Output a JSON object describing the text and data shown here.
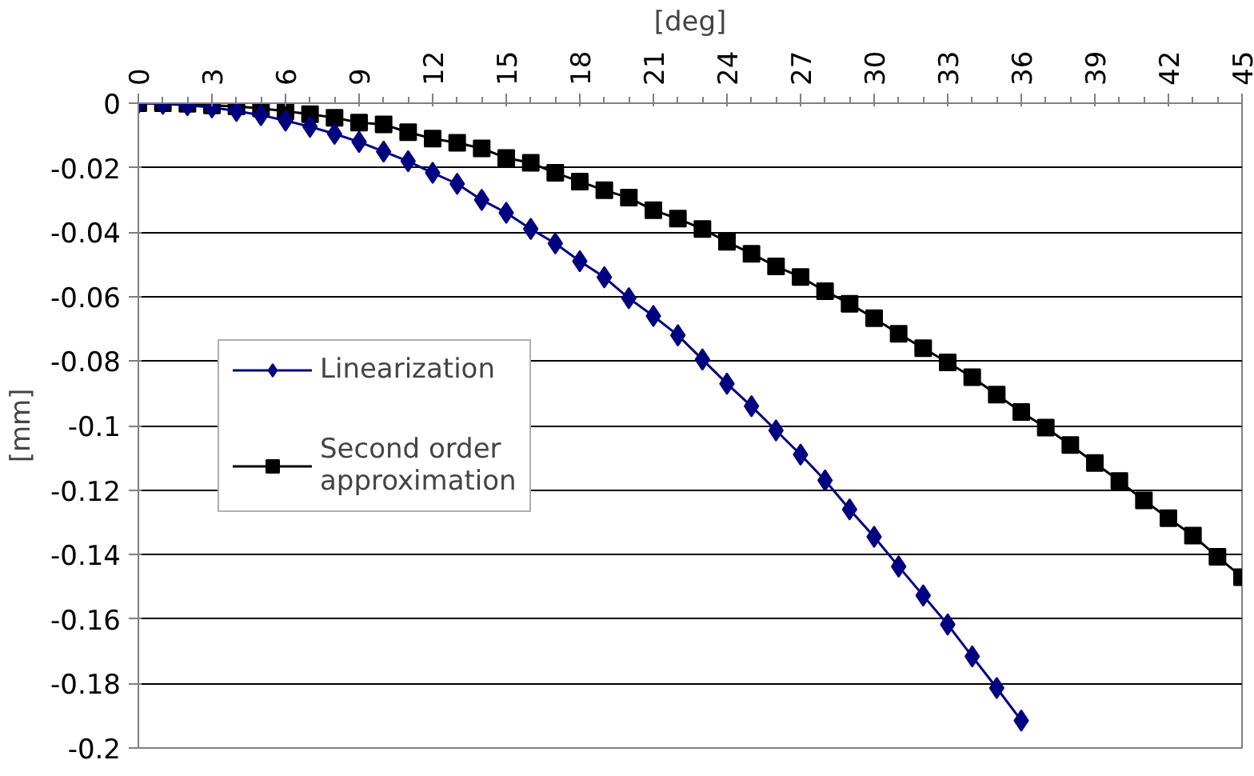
{
  "chart_data": {
    "type": "line",
    "xlabel": "[deg]",
    "ylabel": "[mm]",
    "x": [
      0,
      1,
      2,
      3,
      4,
      5,
      6,
      7,
      8,
      9,
      10,
      11,
      12,
      13,
      14,
      15,
      16,
      17,
      18,
      19,
      20,
      21,
      22,
      23,
      24,
      25,
      26,
      27,
      28,
      29,
      30,
      31,
      32,
      33,
      34,
      35,
      36,
      37,
      38,
      39,
      40,
      41,
      42,
      43,
      44,
      45
    ],
    "series": [
      {
        "name": "Linearization",
        "color": "#000080",
        "marker": "diamond",
        "values": [
          0,
          -0.0002,
          -0.0006,
          -0.0013,
          -0.0024,
          -0.0037,
          -0.0054,
          -0.0073,
          -0.0095,
          -0.012,
          -0.015,
          -0.018,
          -0.0216,
          -0.025,
          -0.03,
          -0.034,
          -0.039,
          -0.0435,
          -0.049,
          -0.054,
          -0.0605,
          -0.066,
          -0.072,
          -0.0795,
          -0.087,
          -0.094,
          -0.1015,
          -0.109,
          -0.117,
          -0.126,
          -0.1345,
          -0.1437,
          -0.1527,
          -0.1617,
          -0.1716,
          -0.1814,
          -0.1915,
          null,
          null,
          null,
          null,
          null,
          null,
          null,
          null,
          null
        ]
      },
      {
        "name": "Second order approximation",
        "color": "#000000",
        "marker": "square",
        "values": [
          0,
          0,
          -0.0002,
          -0.0007,
          -0.001,
          -0.0016,
          -0.0025,
          -0.0034,
          -0.0045,
          -0.006,
          -0.0066,
          -0.009,
          -0.011,
          -0.0123,
          -0.014,
          -0.017,
          -0.0185,
          -0.0216,
          -0.0243,
          -0.027,
          -0.0293,
          -0.0332,
          -0.0358,
          -0.039,
          -0.043,
          -0.0467,
          -0.0506,
          -0.0539,
          -0.0583,
          -0.0622,
          -0.0667,
          -0.0715,
          -0.076,
          -0.0804,
          -0.085,
          -0.0904,
          -0.0958,
          -0.1006,
          -0.106,
          -0.1116,
          -0.1172,
          -0.1232,
          -0.1287,
          -0.1341,
          -0.1407,
          -0.147
        ]
      }
    ],
    "xlim": [
      0,
      45
    ],
    "xticks": [
      0,
      3,
      6,
      9,
      12,
      15,
      18,
      21,
      24,
      27,
      30,
      33,
      36,
      39,
      42,
      45
    ],
    "ylim": [
      -0.2,
      0
    ],
    "yticks": [
      {
        "value": 0,
        "label": "0"
      },
      {
        "value": -0.02,
        "label": "-0.02"
      },
      {
        "value": -0.04,
        "label": "-0.04"
      },
      {
        "value": -0.06,
        "label": "-0.06"
      },
      {
        "value": -0.08,
        "label": "-0.08"
      },
      {
        "value": -0.1,
        "label": "-0.1"
      },
      {
        "value": -0.12,
        "label": "-0.12"
      },
      {
        "value": -0.14,
        "label": "-0.14"
      },
      {
        "value": -0.16,
        "label": "-0.16"
      },
      {
        "value": -0.18,
        "label": "-0.18"
      },
      {
        "value": -0.2,
        "label": "-0.2"
      }
    ],
    "grid": "y",
    "legend": "left",
    "line_style": "solid"
  }
}
